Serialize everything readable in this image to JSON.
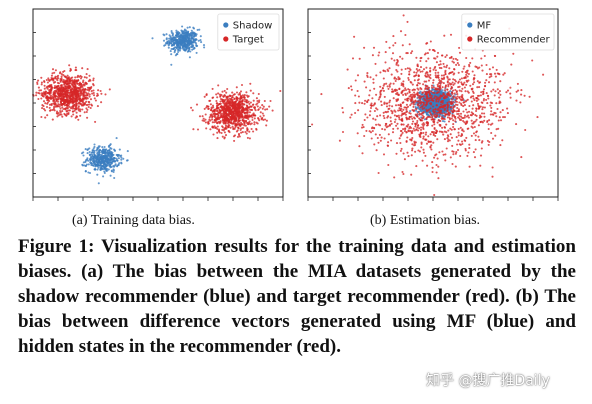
{
  "chart_data": [
    {
      "type": "scatter",
      "title": "",
      "caption": "(a)  Training data bias.",
      "legend": {
        "placement": "top-right",
        "entries": [
          "Shadow",
          "Target"
        ]
      },
      "grid": false,
      "xlim": [
        0,
        10
      ],
      "ylim": [
        0,
        10
      ],
      "colors": {
        "Shadow": "#3b7ec0",
        "Target": "#d62728"
      },
      "series": [
        {
          "name": "Shadow",
          "clusters": [
            {
              "cx": 6.0,
              "cy": 8.3,
              "spread": 0.55,
              "count": 450
            },
            {
              "cx": 2.8,
              "cy": 2.0,
              "spread": 0.6,
              "count": 450
            }
          ]
        },
        {
          "name": "Target",
          "clusters": [
            {
              "cx": 1.4,
              "cy": 5.5,
              "spread": 0.95,
              "count": 900
            },
            {
              "cx": 8.0,
              "cy": 4.5,
              "spread": 0.95,
              "count": 900
            }
          ]
        }
      ]
    },
    {
      "type": "scatter",
      "title": "",
      "caption": "(b)  Estimation bias.",
      "legend": {
        "placement": "top-right",
        "entries": [
          "MF",
          "Recommender"
        ]
      },
      "grid": false,
      "xlim": [
        0,
        10
      ],
      "ylim": [
        0,
        10
      ],
      "colors": {
        "MF": "#3b7ec0",
        "Recommender": "#d62728"
      },
      "series": [
        {
          "name": "MF",
          "clusters": [
            {
              "cx": 5.1,
              "cy": 5.0,
              "spread": 0.55,
              "count": 1500
            }
          ]
        },
        {
          "name": "Recommender",
          "clusters": [
            {
              "cx": 5.0,
              "cy": 5.0,
              "spread": 2.6,
              "count": 1400
            }
          ]
        }
      ]
    }
  ],
  "figure_caption": "Figure 1: Visualization results for the training data and estimation biases. (a) The bias between the MIA datasets generated by the shadow recommender (blue) and target recommender (red). (b) The bias between difference vectors generated using MF (blue) and hidden states in the recommender (red).",
  "watermark": "知乎 @搜广推Daily"
}
